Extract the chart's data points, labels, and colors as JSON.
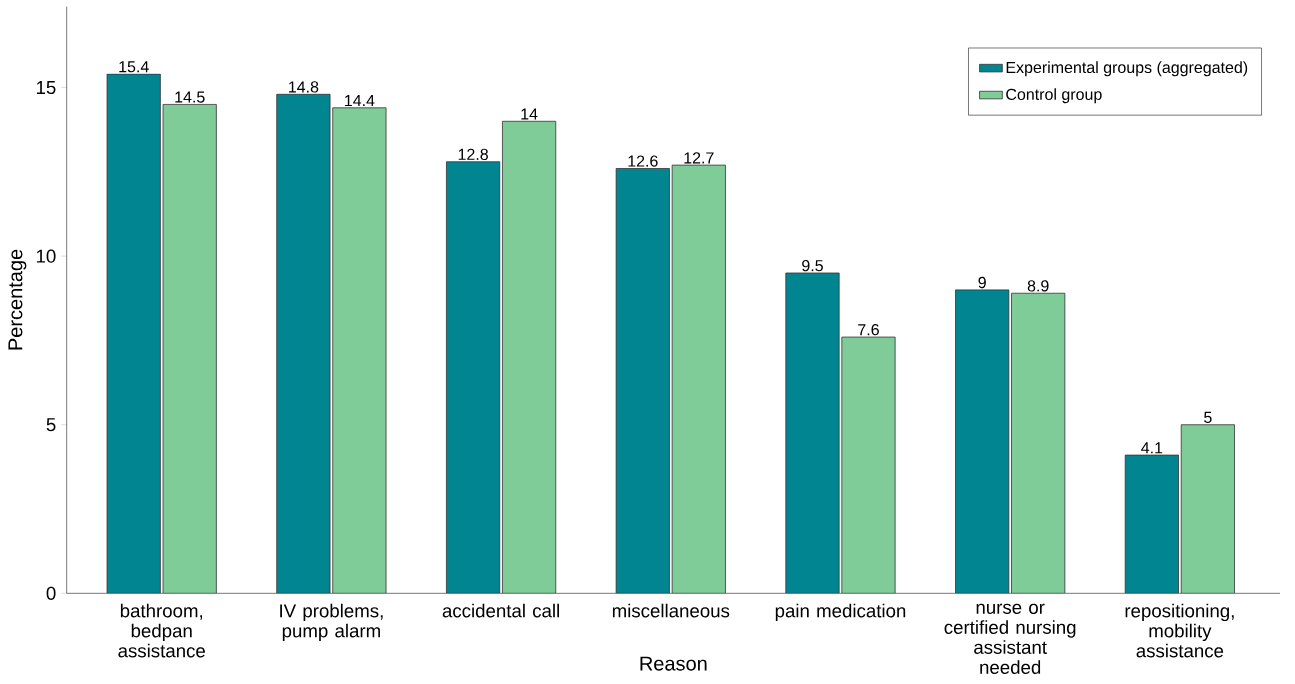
{
  "chart_data": {
    "type": "bar",
    "xlabel": "Reason",
    "ylabel": "Percentage",
    "categories": [
      "bathroom, bedpan assistance",
      "IV problems, pump alarm",
      "accidental call",
      "miscellaneous",
      "pain medication",
      "nurse or certified nursing assistant needed",
      "repositioning, mobility assistance"
    ],
    "series": [
      {
        "name": "Experimental groups (aggregated)",
        "color": "#008591",
        "values": [
          15.4,
          14.8,
          12.8,
          12.6,
          9.5,
          9,
          4.1
        ]
      },
      {
        "name": "Control group",
        "color": "#80cc99",
        "values": [
          14.5,
          14.4,
          14,
          12.7,
          7.6,
          8.9,
          5
        ]
      }
    ],
    "ylim": [
      0,
      17.4
    ],
    "yticks": [
      0,
      5,
      10,
      15
    ],
    "grid": false,
    "legend": "top right",
    "data_labels": true
  }
}
